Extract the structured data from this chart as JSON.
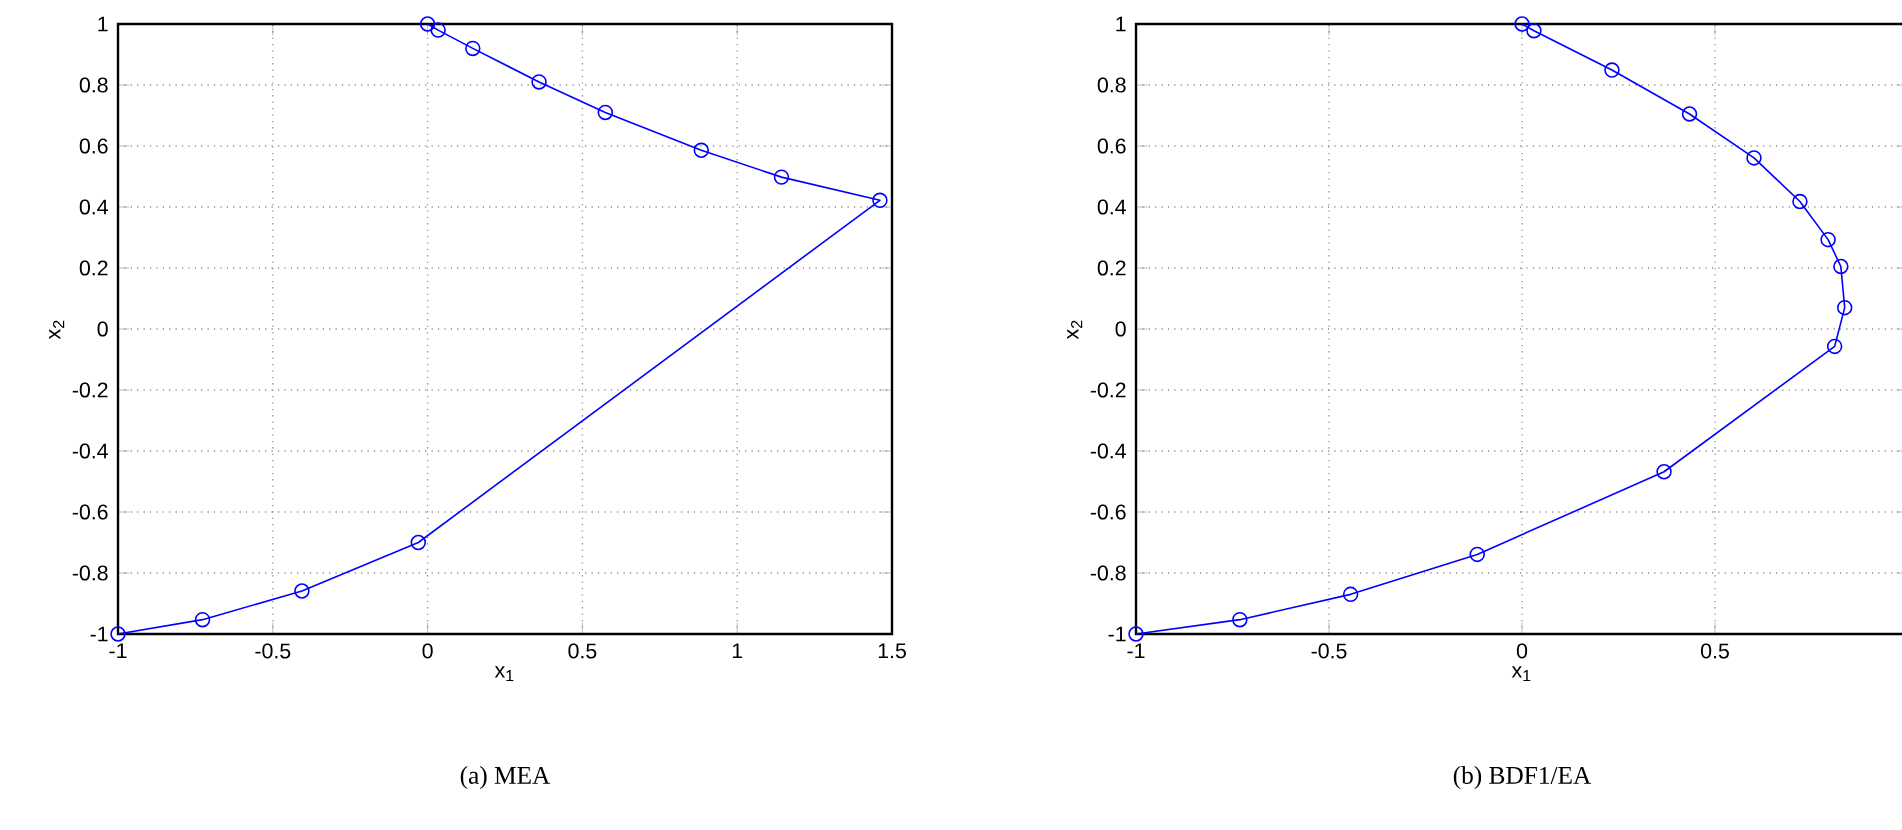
{
  "chart_data": [
    {
      "type": "line",
      "title": "(a)  MEA",
      "xlabel": "x$_{1}$",
      "ylabel": "x$_{2}$",
      "x": [
        0,
        0.034,
        0.146,
        0.36,
        0.574,
        0.884,
        1.143,
        1.461,
        -0.03,
        -0.406,
        -0.727,
        -1
      ],
      "values": [
        1,
        0.98,
        0.92,
        0.81,
        0.71,
        0.586,
        0.498,
        0.422,
        -0.7,
        -0.859,
        -0.953,
        -1
      ],
      "color": "#0000ff",
      "marker": "circle",
      "line_style": "solid",
      "grid": true,
      "xlim": [
        -1,
        1.5
      ],
      "ylim": [
        -1,
        1
      ],
      "xticks": [
        -1,
        -0.5,
        0,
        0.5,
        1,
        1.5
      ],
      "yticks": [
        -1,
        -0.8,
        -0.6,
        -0.4,
        -0.2,
        0,
        0.2,
        0.4,
        0.6,
        0.8,
        1
      ]
    },
    {
      "type": "line",
      "title": "(b)  BDF1/EA",
      "xlabel": "x$_{1}$",
      "ylabel": "x$_{2}$",
      "x": [
        0,
        0.031,
        0.233,
        0.434,
        0.601,
        0.72,
        0.793,
        0.826,
        0.836,
        0.81,
        0.368,
        -0.116,
        -0.444,
        -0.731,
        -1
      ],
      "values": [
        1,
        0.978,
        0.849,
        0.705,
        0.561,
        0.418,
        0.293,
        0.205,
        0.07,
        -0.057,
        -0.468,
        -0.739,
        -0.87,
        -0.953,
        -1
      ],
      "color": "#0000ff",
      "marker": "circle",
      "line_style": "solid",
      "grid": true,
      "xlim": [
        -1,
        1
      ],
      "ylim": [
        -1,
        1
      ],
      "xticks": [
        -1,
        -0.5,
        0,
        0.5
      ],
      "yticks": [
        -1,
        -0.8,
        -0.6,
        -0.4,
        -0.2,
        0,
        0.2,
        0.4,
        0.6,
        0.8,
        1
      ]
    }
  ]
}
